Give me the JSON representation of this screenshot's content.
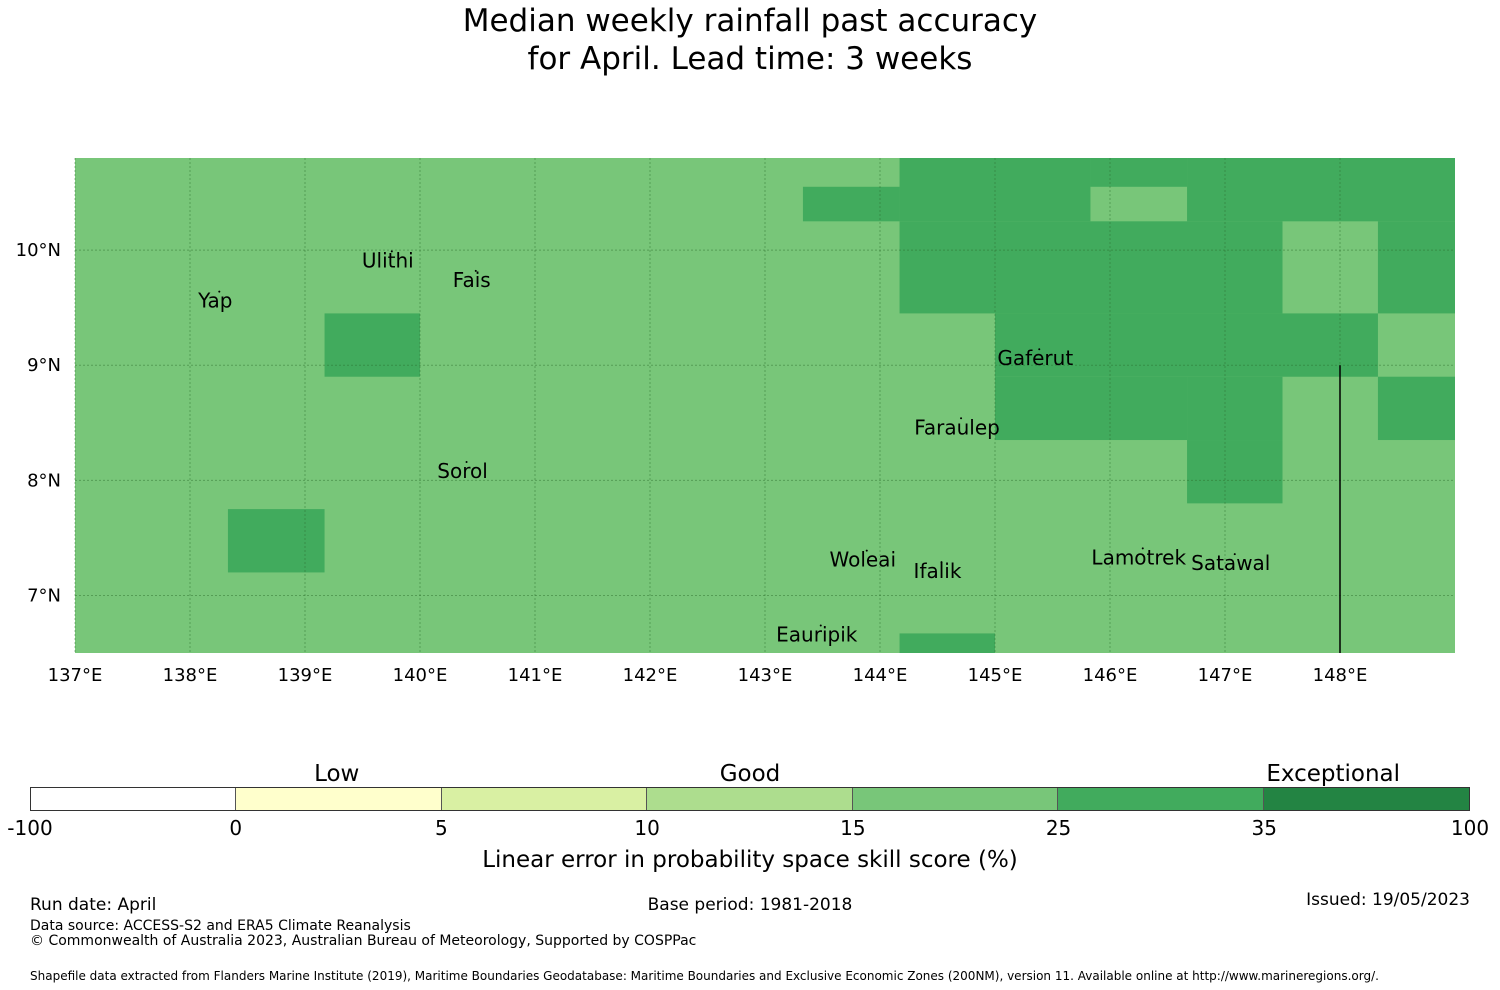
{
  "title": {
    "line1": "Median weekly rainfall past accuracy",
    "line2": "for April. Lead time: 3 weeks"
  },
  "map": {
    "lon_range": [
      137,
      149
    ],
    "lat_range": [
      6.5,
      10.8
    ],
    "lon_ticks": [
      137,
      138,
      139,
      140,
      141,
      142,
      143,
      144,
      145,
      146,
      147,
      148
    ],
    "lon_tick_labels": [
      "137°E",
      "138°E",
      "139°E",
      "140°E",
      "141°E",
      "142°E",
      "143°E",
      "144°E",
      "145°E",
      "146°E",
      "147°E",
      "148°E"
    ],
    "lat_ticks": [
      7,
      8,
      9,
      10
    ],
    "lat_tick_labels": [
      "7°N",
      "8°N",
      "9°N",
      "10°N"
    ],
    "base_color": "#78c679",
    "cells": [
      {
        "lon": [
          143.33,
          144.17
        ],
        "lat": [
          10.25,
          10.55
        ],
        "color": "#41ab5d"
      },
      {
        "lon": [
          144.17,
          145.0
        ],
        "lat": [
          10.25,
          10.8
        ],
        "color": "#41ab5d"
      },
      {
        "lon": [
          145.0,
          145.83
        ],
        "lat": [
          10.25,
          10.8
        ],
        "color": "#41ab5d"
      },
      {
        "lon": [
          145.83,
          146.67
        ],
        "lat": [
          10.55,
          10.8
        ],
        "color": "#41ab5d"
      },
      {
        "lon": [
          146.67,
          149.0
        ],
        "lat": [
          10.25,
          10.8
        ],
        "color": "#41ab5d"
      },
      {
        "lon": [
          144.17,
          147.5
        ],
        "lat": [
          9.45,
          10.25
        ],
        "color": "#41ab5d"
      },
      {
        "lon": [
          148.33,
          149.0
        ],
        "lat": [
          9.45,
          10.25
        ],
        "color": "#41ab5d"
      },
      {
        "lon": [
          139.17,
          140.0
        ],
        "lat": [
          8.9,
          9.45
        ],
        "color": "#41ab5d"
      },
      {
        "lon": [
          145.0,
          148.33
        ],
        "lat": [
          8.9,
          9.45
        ],
        "color": "#41ab5d"
      },
      {
        "lon": [
          145.0,
          146.67
        ],
        "lat": [
          8.35,
          8.9
        ],
        "color": "#41ab5d"
      },
      {
        "lon": [
          146.67,
          147.5
        ],
        "lat": [
          8.35,
          8.9
        ],
        "color": "#41ab5d"
      },
      {
        "lon": [
          148.33,
          149.0
        ],
        "lat": [
          8.35,
          8.9
        ],
        "color": "#41ab5d"
      },
      {
        "lon": [
          146.67,
          147.5
        ],
        "lat": [
          7.8,
          8.35
        ],
        "color": "#41ab5d"
      },
      {
        "lon": [
          138.33,
          139.17
        ],
        "lat": [
          7.2,
          7.75
        ],
        "color": "#41ab5d"
      },
      {
        "lon": [
          144.17,
          145.0
        ],
        "lat": [
          6.5,
          6.67
        ],
        "color": "#41ab5d"
      }
    ],
    "boundary_line": {
      "lon": 148,
      "lat": [
        6.5,
        9.0
      ]
    },
    "places": [
      {
        "name": "Yap",
        "lon": 138.22,
        "lat": 9.5
      },
      {
        "name": "Ulithi",
        "lon": 139.72,
        "lat": 9.85
      },
      {
        "name": "Fais",
        "lon": 140.45,
        "lat": 9.68
      },
      {
        "name": "Gaferut",
        "lon": 145.35,
        "lat": 9.0
      },
      {
        "name": "Faraulep",
        "lon": 144.67,
        "lat": 8.4
      },
      {
        "name": "Sorol",
        "lon": 140.37,
        "lat": 8.02
      },
      {
        "name": "Woleai",
        "lon": 143.85,
        "lat": 7.25
      },
      {
        "name": "Ifalik",
        "lon": 144.5,
        "lat": 7.15
      },
      {
        "name": "Lamotrek",
        "lon": 146.25,
        "lat": 7.27
      },
      {
        "name": "Satawal",
        "lon": 147.05,
        "lat": 7.22
      },
      {
        "name": "Eauripik",
        "lon": 143.45,
        "lat": 6.6
      }
    ]
  },
  "legend": {
    "headers": [
      {
        "text": "Low",
        "at": 0.213
      },
      {
        "text": "Good",
        "at": 0.5
      },
      {
        "text": "Exceptional",
        "at": 0.905
      }
    ],
    "bins": [
      {
        "color": "#ffffff"
      },
      {
        "color": "#ffffcc"
      },
      {
        "color": "#d9f0a3"
      },
      {
        "color": "#addd8e"
      },
      {
        "color": "#78c679"
      },
      {
        "color": "#41ab5d"
      },
      {
        "color": "#238443"
      }
    ],
    "ticks": [
      "-100",
      "0",
      "5",
      "10",
      "15",
      "25",
      "35",
      "100"
    ],
    "label": "Linear error in probability space skill score (%)"
  },
  "footer": {
    "run_date": "Run date: April",
    "base_period": "Base period: 1981-2018",
    "issued": "Issued: 19/05/2023",
    "data_source": "Data source: ACCESS-S2 and ERA5 Climate Reanalysis",
    "copyright": "© Commonwealth of Australia 2023, Australian Bureau of Meteorology, Supported by COSPPac",
    "shapefile": "Shapefile data extracted from Flanders Marine Institute (2019), Maritime Boundaries Geodatabase: Maritime Boundaries and Exclusive Economic Zones (200NM), version 11. Available online at http://www.marineregions.org/."
  }
}
